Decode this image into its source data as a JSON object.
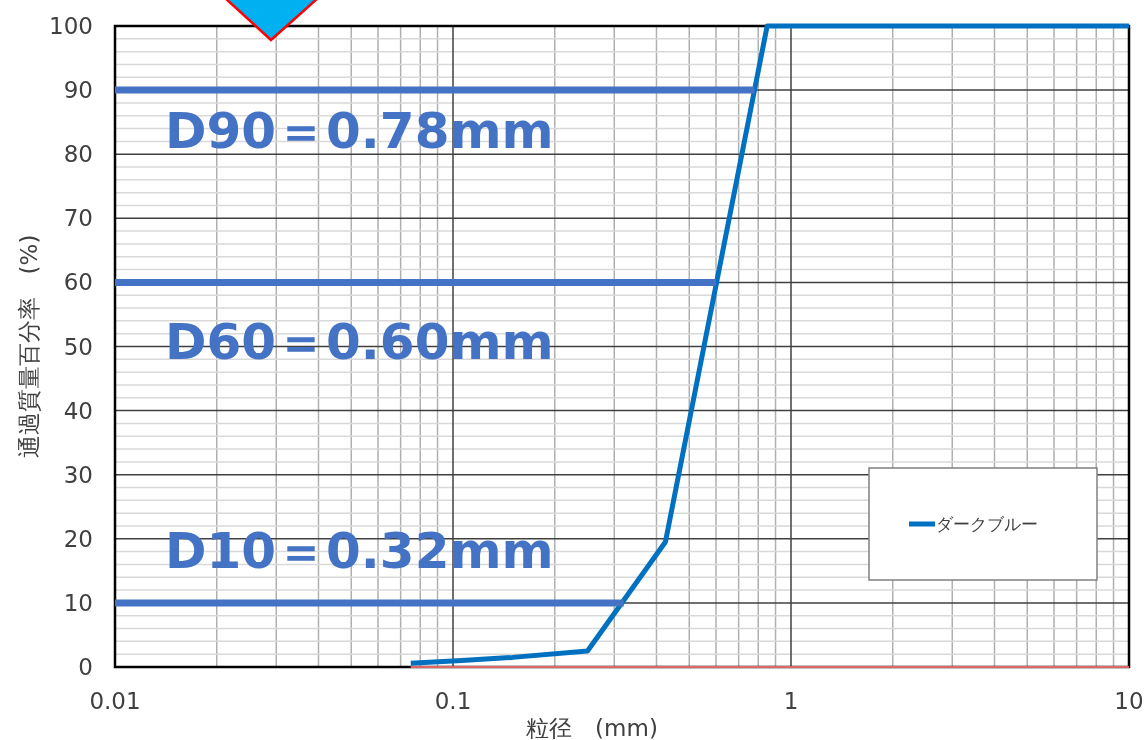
{
  "chart_data": {
    "type": "line",
    "xlabel": "粒径　(mm)",
    "ylabel": "通過質量百分率　(%)",
    "log": "x",
    "xlim": [
      0.01,
      10
    ],
    "xticks": [
      0.01,
      0.1,
      1,
      10
    ],
    "ylim": [
      0,
      100
    ],
    "yticks": [
      0,
      10,
      20,
      30,
      40,
      50,
      60,
      70,
      80,
      90,
      100
    ],
    "grid": true,
    "legend": "bottom right",
    "series": [
      {
        "name": "ダークブルー",
        "color": "#0070c0",
        "x": [
          0.075,
          0.106,
          0.15,
          0.25,
          0.425,
          0.85,
          2,
          10
        ],
        "values": [
          0.6,
          1.0,
          1.5,
          2.5,
          19.5,
          100,
          100,
          100
        ]
      },
      {
        "color": "#e06666",
        "x": [
          0.075,
          10
        ],
        "values": [
          0,
          0
        ]
      },
      {
        "color": "#4472c4",
        "x": [
          0.01,
          0.78
        ],
        "values": [
          90,
          90
        ]
      },
      {
        "color": "#4472c4",
        "x": [
          0.01,
          0.6
        ],
        "values": [
          60,
          60
        ]
      },
      {
        "color": "#4472c4",
        "x": [
          0.01,
          0.32
        ],
        "values": [
          10,
          10
        ]
      }
    ],
    "annotations": [
      "D90＝0.78mm",
      "D60＝0.60mm",
      "D10＝0.32mm"
    ]
  }
}
